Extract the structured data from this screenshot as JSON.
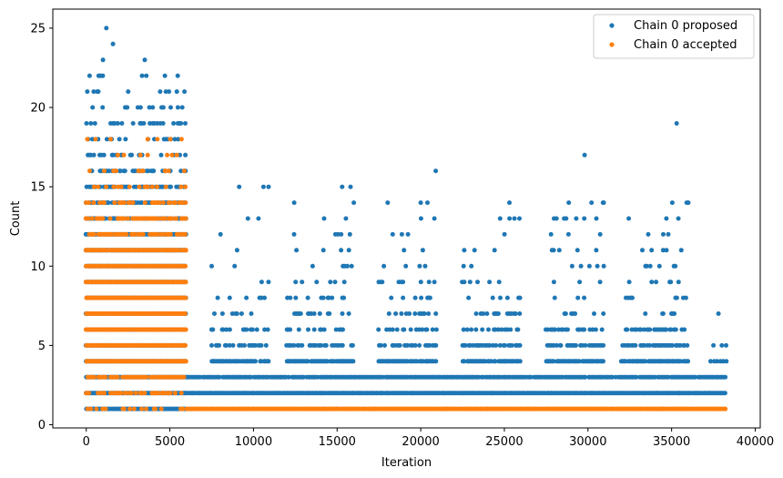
{
  "chart_data": {
    "type": "scatter",
    "title": "",
    "xlabel": "Iteration",
    "ylabel": "Count",
    "xlim": [
      -2000,
      40300
    ],
    "ylim": [
      -0.2,
      26.2
    ],
    "xticks": [
      0,
      5000,
      10000,
      15000,
      20000,
      25000,
      30000,
      35000,
      40000
    ],
    "yticks": [
      0,
      5,
      10,
      15,
      20,
      25
    ],
    "legend": {
      "position": "top-right"
    },
    "series": [
      {
        "name": "Chain 0 proposed",
        "color": "#1f77b4",
        "segments": [
          {
            "x_start": 0,
            "x_end": 6000,
            "levels": [
              [
                1,
                1
              ],
              [
                2,
                1
              ],
              [
                3,
                1
              ],
              [
                4,
                1
              ],
              [
                5,
                1
              ],
              [
                6,
                1
              ],
              [
                7,
                1
              ],
              [
                8,
                1
              ],
              [
                9,
                1
              ],
              [
                10,
                1
              ],
              [
                11,
                1
              ],
              [
                12,
                0.95
              ],
              [
                13,
                0.9
              ],
              [
                14,
                0.7
              ],
              [
                15,
                0.6
              ],
              [
                16,
                0.45
              ],
              [
                17,
                0.35
              ],
              [
                18,
                0.3
              ],
              [
                19,
                0.25
              ],
              [
                20,
                0.15
              ],
              [
                21,
                0.12
              ],
              [
                22,
                0.06
              ]
            ]
          },
          {
            "x_start": 6000,
            "x_end": 38300,
            "levels": [
              [
                2,
                1
              ]
            ]
          },
          {
            "x_start": 6000,
            "x_end": 38300,
            "levels": [
              [
                3,
                0.95
              ]
            ]
          },
          {
            "x_start": 6000,
            "x_end": 38300,
            "levels": [
              [
                1,
                0.02
              ]
            ]
          },
          {
            "x_start": 7500,
            "x_end": 11000,
            "levels": [
              [
                4,
                0.9
              ],
              [
                5,
                0.6
              ],
              [
                6,
                0.35
              ],
              [
                7,
                0.15
              ],
              [
                8,
                0.12
              ],
              [
                9,
                0.08
              ],
              [
                10,
                0.06
              ],
              [
                11,
                0.04
              ],
              [
                12,
                0.04
              ],
              [
                13,
                0.02
              ],
              [
                14,
                0.02
              ],
              [
                15,
                0.02
              ]
            ]
          },
          {
            "x_start": 12000,
            "x_end": 16000,
            "levels": [
              [
                4,
                0.9
              ],
              [
                5,
                0.6
              ],
              [
                6,
                0.4
              ],
              [
                7,
                0.25
              ],
              [
                8,
                0.2
              ],
              [
                9,
                0.15
              ],
              [
                10,
                0.1
              ],
              [
                11,
                0.07
              ],
              [
                12,
                0.05
              ],
              [
                13,
                0.04
              ],
              [
                14,
                0.03
              ],
              [
                15,
                0.03
              ]
            ]
          },
          {
            "x_start": 17500,
            "x_end": 21000,
            "levels": [
              [
                4,
                0.9
              ],
              [
                5,
                0.6
              ],
              [
                6,
                0.4
              ],
              [
                7,
                0.25
              ],
              [
                8,
                0.2
              ],
              [
                9,
                0.15
              ],
              [
                10,
                0.1
              ],
              [
                11,
                0.06
              ],
              [
                12,
                0.05
              ],
              [
                13,
                0.04
              ],
              [
                14,
                0.03
              ]
            ]
          },
          {
            "x_start": 22500,
            "x_end": 26000,
            "levels": [
              [
                4,
                0.9
              ],
              [
                5,
                0.6
              ],
              [
                6,
                0.45
              ],
              [
                7,
                0.25
              ],
              [
                8,
                0.2
              ],
              [
                9,
                0.15
              ],
              [
                10,
                0.1
              ],
              [
                11,
                0.06
              ],
              [
                12,
                0.05
              ],
              [
                13,
                0.04
              ],
              [
                14,
                0.02
              ]
            ]
          },
          {
            "x_start": 27500,
            "x_end": 31000,
            "levels": [
              [
                4,
                0.9
              ],
              [
                5,
                0.6
              ],
              [
                6,
                0.4
              ],
              [
                7,
                0.25
              ],
              [
                8,
                0.2
              ],
              [
                9,
                0.15
              ],
              [
                10,
                0.1
              ],
              [
                11,
                0.06
              ],
              [
                12,
                0.04
              ],
              [
                13,
                0.04
              ],
              [
                14,
                0.02
              ]
            ]
          },
          {
            "x_start": 32000,
            "x_end": 36000,
            "levels": [
              [
                4,
                0.9
              ],
              [
                5,
                0.6
              ],
              [
                6,
                0.4
              ],
              [
                7,
                0.25
              ],
              [
                8,
                0.2
              ],
              [
                9,
                0.15
              ],
              [
                10,
                0.1
              ],
              [
                11,
                0.06
              ],
              [
                12,
                0.04
              ],
              [
                13,
                0.03
              ],
              [
                14,
                0.02
              ]
            ]
          },
          {
            "x_start": 37000,
            "x_end": 38300,
            "levels": [
              [
                4,
                0.4
              ],
              [
                5,
                0.1
              ]
            ]
          }
        ],
        "points": [
          {
            "x": 1200,
            "y": 25
          },
          {
            "x": 1000,
            "y": 23
          },
          {
            "x": 1600,
            "y": 24
          },
          {
            "x": 3500,
            "y": 23
          },
          {
            "x": 4700,
            "y": 22
          },
          {
            "x": 800,
            "y": 22
          },
          {
            "x": 200,
            "y": 22
          },
          {
            "x": 10600,
            "y": 15
          },
          {
            "x": 10900,
            "y": 15
          },
          {
            "x": 10300,
            "y": 13
          },
          {
            "x": 15300,
            "y": 15
          },
          {
            "x": 15800,
            "y": 15
          },
          {
            "x": 16000,
            "y": 14
          },
          {
            "x": 14900,
            "y": 12
          },
          {
            "x": 20900,
            "y": 16
          },
          {
            "x": 20000,
            "y": 14
          },
          {
            "x": 20400,
            "y": 14
          },
          {
            "x": 19000,
            "y": 11
          },
          {
            "x": 25300,
            "y": 14
          },
          {
            "x": 25600,
            "y": 13
          },
          {
            "x": 25900,
            "y": 13
          },
          {
            "x": 29800,
            "y": 17
          },
          {
            "x": 30900,
            "y": 14
          },
          {
            "x": 29300,
            "y": 13
          },
          {
            "x": 30500,
            "y": 13
          },
          {
            "x": 35300,
            "y": 19
          },
          {
            "x": 35900,
            "y": 14
          },
          {
            "x": 36000,
            "y": 14
          },
          {
            "x": 34500,
            "y": 12
          },
          {
            "x": 34800,
            "y": 12
          },
          {
            "x": 37800,
            "y": 7
          },
          {
            "x": 37500,
            "y": 5
          },
          {
            "x": 38000,
            "y": 5
          }
        ]
      },
      {
        "name": "Chain 0 accepted",
        "color": "#ff7f0e",
        "segments": [
          {
            "x_start": 0,
            "x_end": 6000,
            "levels": [
              [
                1,
                0.2
              ],
              [
                2,
                0.5
              ],
              [
                3,
                0.85
              ],
              [
                4,
                1
              ],
              [
                5,
                1
              ],
              [
                6,
                1
              ],
              [
                7,
                1
              ],
              [
                8,
                1
              ],
              [
                9,
                1
              ],
              [
                10,
                1
              ],
              [
                11,
                0.97
              ],
              [
                12,
                0.7
              ],
              [
                13,
                0.6
              ],
              [
                14,
                0.45
              ],
              [
                15,
                0.35
              ],
              [
                16,
                0.22
              ],
              [
                17,
                0.12
              ],
              [
                18,
                0.08
              ]
            ]
          },
          {
            "x_start": 6000,
            "x_end": 38300,
            "levels": [
              [
                1,
                1
              ]
            ]
          }
        ],
        "points": []
      }
    ]
  }
}
